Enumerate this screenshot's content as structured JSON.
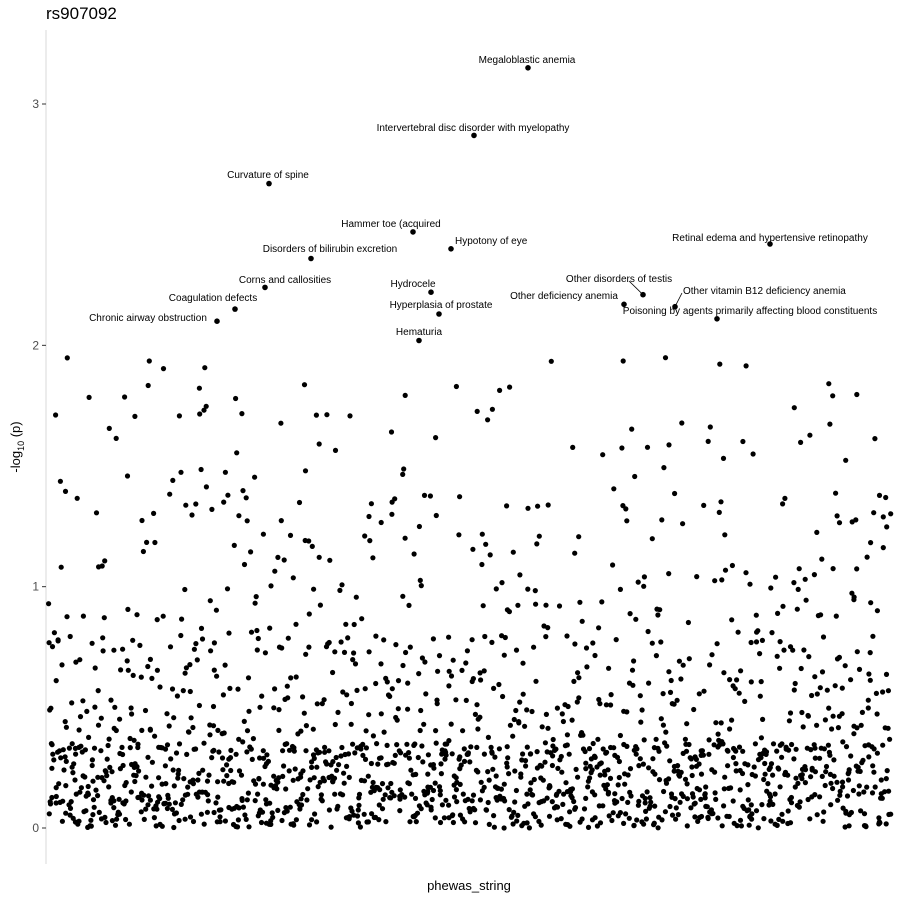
{
  "chart_data": {
    "type": "scatter",
    "title": "rs907092",
    "xlabel": "phewas_string",
    "ylabel": "-log10 (p)",
    "ylim": [
      -0.15,
      3.32
    ],
    "yticks": [
      0,
      1,
      2,
      3
    ],
    "grid": false,
    "n_background_points": 1750,
    "annotated_points": [
      {
        "label": "Megaloblastic anemia",
        "y": 3.15
      },
      {
        "label": "Intervertebral disc disorder with myelopathy",
        "y": 2.87
      },
      {
        "label": "Curvature of spine",
        "y": 2.67
      },
      {
        "label": "Hammer toe (acquired",
        "y": 2.47
      },
      {
        "label": "Hypotony of eye",
        "y": 2.4
      },
      {
        "label": "Retinal edema and hypertensive retinopathy",
        "y": 2.42
      },
      {
        "label": "Disorders of bilirubin excretion",
        "y": 2.36
      },
      {
        "label": "Corns and callosities",
        "y": 2.24
      },
      {
        "label": "Hydrocele",
        "y": 2.22
      },
      {
        "label": "Other disorders of testis",
        "y": 2.21
      },
      {
        "label": "Other deficiency anemia",
        "y": 2.17
      },
      {
        "label": "Other vitamin B12 deficiency anemia",
        "y": 2.16
      },
      {
        "label": "Coagulation defects",
        "y": 2.15
      },
      {
        "label": "Hyperplasia of prostate",
        "y": 2.13
      },
      {
        "label": "Poisoning by agents primarily affecting blood constituents",
        "y": 2.11
      },
      {
        "label": "Chronic airway obstruction",
        "y": 2.1
      },
      {
        "label": "Hematuria",
        "y": 2.02
      }
    ]
  }
}
